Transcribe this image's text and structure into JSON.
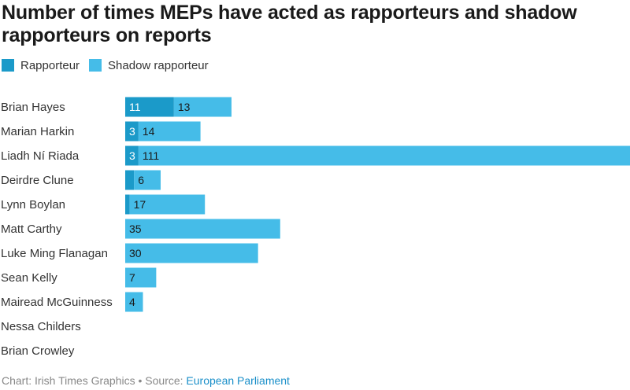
{
  "chart_data": {
    "type": "bar",
    "orientation": "horizontal",
    "stacked": true,
    "title": "Number of times MEPs have acted as rapporteurs and shadow rapporteurs on reports",
    "categories": [
      "Brian Hayes",
      "Marian Harkin",
      "Liadh Ní Riada",
      "Deirdre Clune",
      "Lynn Boylan",
      "Matt Carthy",
      "Luke Ming Flanagan",
      "Sean Kelly",
      "Mairead McGuinness",
      "Nessa Childers",
      "Brian Crowley"
    ],
    "series": [
      {
        "name": "Rapporteur",
        "color": "#1b9ac9",
        "values": [
          11,
          3,
          3,
          2,
          1,
          0,
          0,
          0,
          0,
          0,
          0
        ],
        "labels": [
          "11",
          "3",
          "3",
          "",
          "",
          "",
          "",
          "",
          "",
          "",
          ""
        ]
      },
      {
        "name": "Shadow rapporteur",
        "color": "#45bce8",
        "values": [
          13,
          14,
          111,
          6,
          17,
          35,
          30,
          7,
          4,
          0,
          0
        ],
        "labels": [
          "13",
          "14",
          "111",
          "6",
          "17",
          "35",
          "30",
          "7",
          "4",
          "",
          ""
        ]
      }
    ],
    "xlim": [
      0,
      114
    ],
    "grid": false,
    "legend_position": "top-left"
  },
  "footer": {
    "prefix": "Chart: Irish Times Graphics • Source: ",
    "source": "European Parliament"
  }
}
